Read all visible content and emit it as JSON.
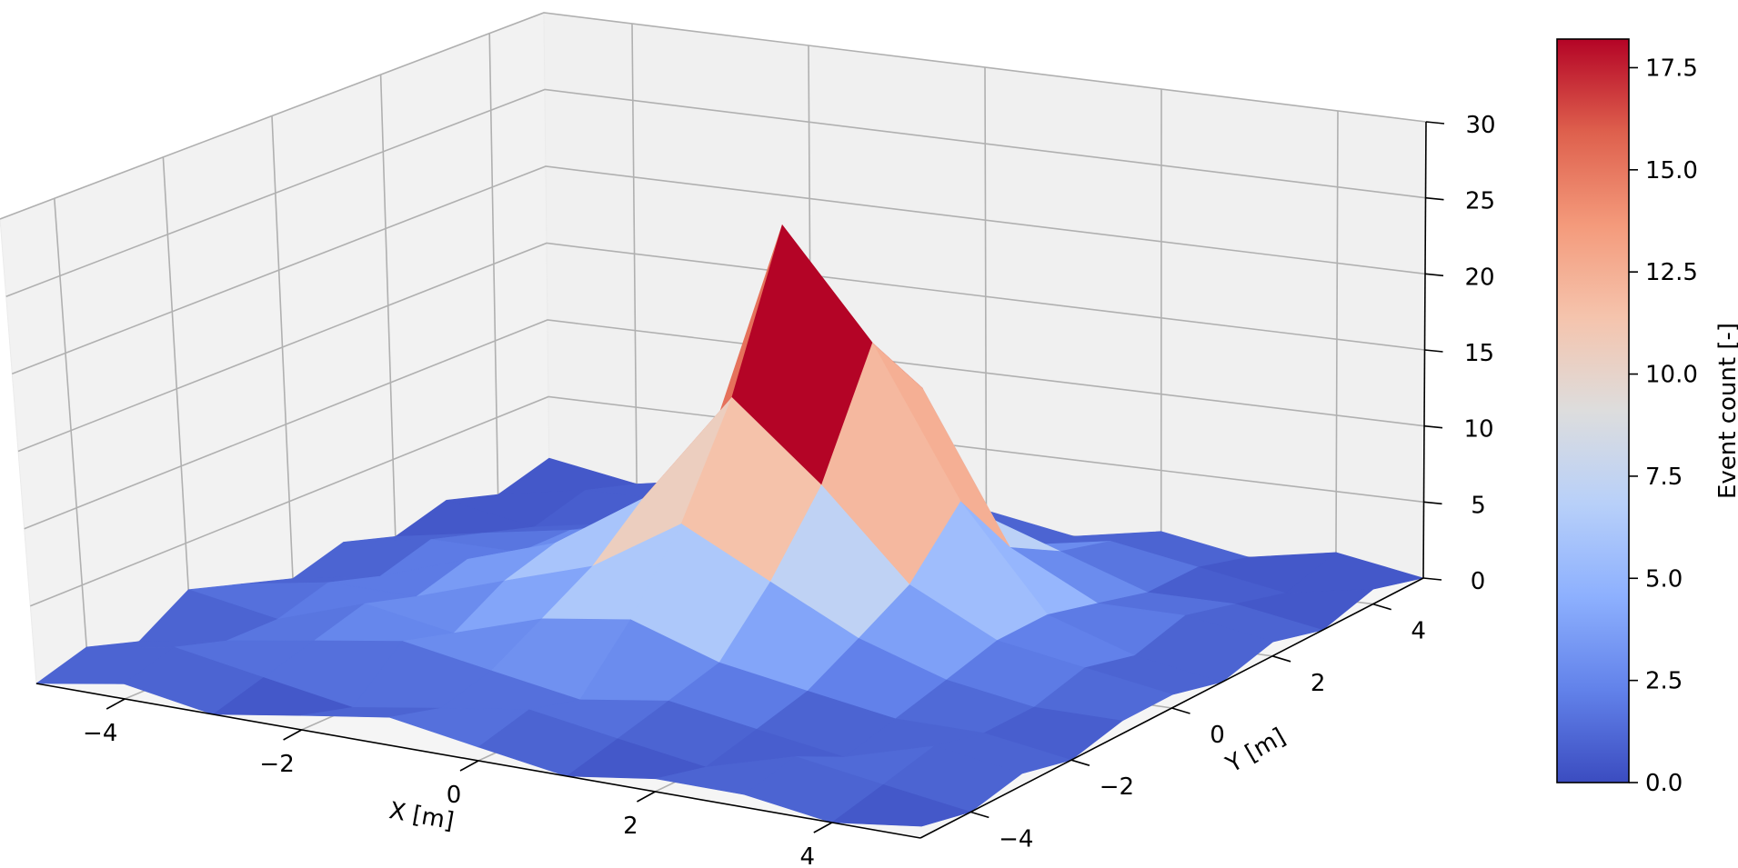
{
  "chart_data": {
    "type": "surface3d",
    "title": "",
    "xlabel": "X [m]",
    "ylabel": "Y [m]",
    "zlabel": "",
    "xlim": [
      -5,
      5
    ],
    "ylim": [
      -5,
      5
    ],
    "zlim": [
      0,
      30
    ],
    "x_ticks": [
      -4,
      -2,
      0,
      2,
      4
    ],
    "y_ticks": [
      -4,
      -2,
      0,
      2,
      4
    ],
    "z_ticks": [
      0,
      5,
      10,
      15,
      20,
      25,
      30
    ],
    "x_tick_labels": [
      "−4",
      "−2",
      "0",
      "2",
      "4"
    ],
    "y_tick_labels": [
      "−4",
      "−2",
      "0",
      "2",
      "4"
    ],
    "z_tick_labels": [
      "0",
      "5",
      "10",
      "15",
      "20",
      "25",
      "30"
    ],
    "grid": true,
    "colormap": "coolwarm",
    "colorbar": {
      "label": "Event count [-]",
      "range": [
        0.0,
        18.2
      ],
      "ticks": [
        0.0,
        2.5,
        5.0,
        7.5,
        10.0,
        12.5,
        15.0,
        17.5
      ],
      "tick_labels": [
        "0.0",
        "2.5",
        "5.0",
        "7.5",
        "10.0",
        "12.5",
        "15.0",
        "17.5"
      ]
    },
    "x": [
      -5,
      -4,
      -3,
      -2,
      -1,
      0,
      1,
      2,
      3,
      4,
      5
    ],
    "y": [
      -5,
      -4,
      -3,
      -2,
      -1,
      0,
      1,
      2,
      3,
      4,
      5
    ],
    "z": [
      [
        0,
        1,
        0,
        1,
        2,
        1,
        0,
        1,
        1,
        0,
        1
      ],
      [
        1,
        2,
        1,
        0,
        1,
        2,
        1,
        0,
        2,
        1,
        0
      ],
      [
        0,
        1,
        2,
        3,
        2,
        1,
        2,
        1,
        0,
        2,
        1
      ],
      [
        2,
        1,
        3,
        2,
        4,
        5,
        3,
        2,
        1,
        1,
        0
      ],
      [
        1,
        2,
        2,
        4,
        6,
        10,
        7,
        4,
        2,
        1,
        1
      ],
      [
        0,
        1,
        3,
        5,
        9,
        17,
        12,
        6,
        3,
        2,
        1
      ],
      [
        1,
        2,
        2,
        4,
        8,
        27,
        20,
        10,
        3,
        1,
        0
      ],
      [
        0,
        1,
        2,
        3,
        5,
        11,
        15,
        5,
        2,
        2,
        1
      ],
      [
        1,
        0,
        1,
        2,
        3,
        4,
        5,
        3,
        1,
        1,
        0
      ],
      [
        0,
        1,
        1,
        0,
        2,
        2,
        1,
        2,
        1,
        0,
        1
      ],
      [
        1,
        0,
        1,
        1,
        0,
        1,
        0,
        1,
        0,
        1,
        0
      ]
    ]
  }
}
